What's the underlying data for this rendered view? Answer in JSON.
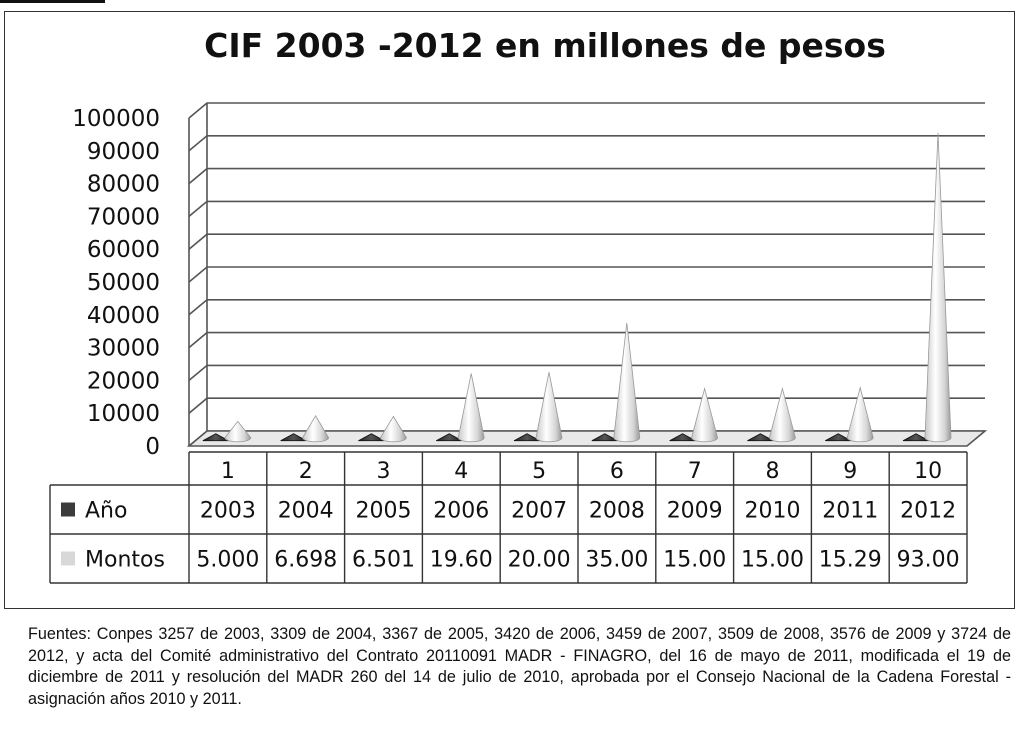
{
  "chart_data": {
    "type": "bar",
    "title": "CIF 2003 -2012 en millones de pesos",
    "categories": [
      "1",
      "2",
      "3",
      "4",
      "5",
      "6",
      "7",
      "8",
      "9",
      "10"
    ],
    "ylim": [
      0,
      100000
    ],
    "yticks": [
      "100000",
      "90000",
      "80000",
      "70000",
      "60000",
      "50000",
      "40000",
      "30000",
      "20000",
      "10000",
      "0"
    ],
    "grid": true,
    "series": [
      {
        "name": "Año",
        "color": "#3c3c3c",
        "values": [
          2003,
          2004,
          2005,
          2006,
          2007,
          2008,
          2009,
          2010,
          2011,
          2012
        ],
        "labels": [
          "2003",
          "2004",
          "2005",
          "2006",
          "2007",
          "2008",
          "2009",
          "2010",
          "2011",
          "2012"
        ]
      },
      {
        "name": "Montos",
        "color": "#d8d8d8",
        "values": [
          5000,
          6698,
          6501,
          19600,
          20000,
          35000,
          15000,
          15000,
          15290,
          93000
        ],
        "labels": [
          "5.000",
          "6.698",
          "6.501",
          "19.60",
          "20.00",
          "35.00",
          "15.00",
          "15.00",
          "15.29",
          "93.00"
        ]
      }
    ]
  },
  "source_note": "Fuentes: Conpes 3257 de 2003, 3309 de 2004, 3367 de 2005, 3420 de 2006, 3459 de 2007, 3509 de 2008, 3576 de 2009 y 3724 de 2012, y acta del Comité administrativo del Contrato 20110091 MADR - FINAGRO, del 16 de mayo de 2011, modificada el 19 de diciembre de 2011 y resolución del MADR 260 del 14 de julio de 2010, aprobada por el Consejo Nacional de la Cadena Forestal - asignación años 2010 y 2011."
}
